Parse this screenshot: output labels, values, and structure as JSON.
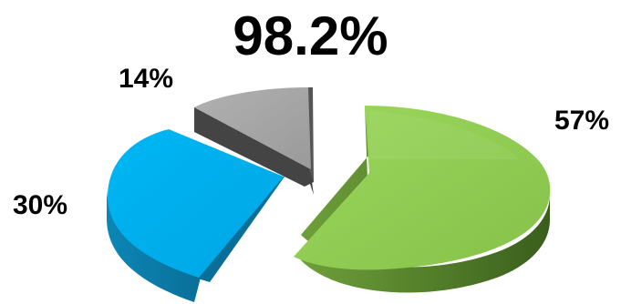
{
  "chart_data": {
    "type": "pie",
    "title": "98.2%",
    "slices": [
      {
        "label": "57%",
        "value": 57,
        "color": "#92d050"
      },
      {
        "label": "30%",
        "value": 30,
        "color": "#00b0f0"
      },
      {
        "label": "14%",
        "value": 14,
        "color": "#a6a6a6"
      }
    ],
    "exploded": true,
    "three_d": true
  }
}
